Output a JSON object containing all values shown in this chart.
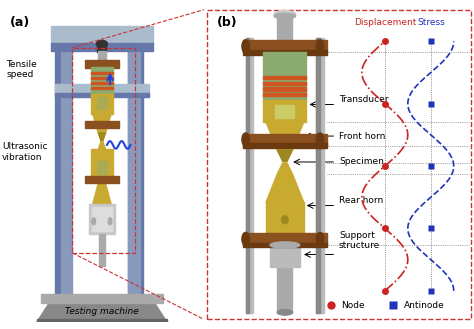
{
  "fig_width": 4.74,
  "fig_height": 3.29,
  "dpi": 100,
  "bg_color": "#ffffff",
  "label_a": "(a)",
  "label_b": "(b)",
  "frame_col_color": "#8899BB",
  "frame_col_dark": "#6677AA",
  "frame_top_color": "#AABBCC",
  "base_top_color": "#AAAAAA",
  "base_body_color": "#888888",
  "base_dark_color": "#666666",
  "crosshead_color": "#AABBCC",
  "brown_color": "#8B5020",
  "brown_dark": "#6B3A10",
  "yellow_color": "#C8AA30",
  "yellow_dark": "#A08820",
  "green_color": "#8AAA70",
  "green_dark": "#6A8A50",
  "silver_color": "#AAAAAA",
  "silver_dark": "#888888",
  "black_cap": "#333333",
  "text_tensile": "Tensile\nspeed",
  "text_ultrasonic": "Ultrasonic\nvibration",
  "text_testing": "Testing machine",
  "text_transducer": "Transducer",
  "text_front_horn": "Front horn",
  "text_specimen": "Specimen",
  "text_rear_horn": "Rear horn",
  "text_support": "Support\nstructure",
  "text_displacement": "Displacement",
  "text_stress": "Stress",
  "text_node": "Node",
  "text_antinode": "Antinode",
  "disp_color": "#CC2222",
  "stress_color": "#2233BB",
  "node_color": "#CC2222",
  "antinode_color": "#2233BB",
  "dashed_border_color": "#CC3333",
  "line_color": "#555555"
}
